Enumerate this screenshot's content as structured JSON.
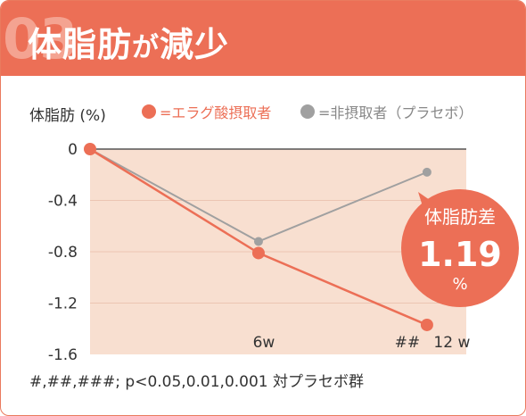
{
  "header": {
    "number": "03",
    "title_main": "体脂肪",
    "title_particle": "が",
    "title_end": "減少"
  },
  "chart_data": {
    "type": "line",
    "ylabel": "体脂肪 (%)",
    "yticks": [
      "0",
      "-0.4",
      "-0.8",
      "-1.2",
      "-1.6"
    ],
    "ylim": [
      -1.6,
      0
    ],
    "x": [
      0,
      6,
      12
    ],
    "xticklabels": [
      "6w",
      "12 w"
    ],
    "series": [
      {
        "name": "=エラグ酸摂取者",
        "color": "#ec6f56",
        "values": [
          0,
          -0.81,
          -1.37
        ]
      },
      {
        "name": "=非摂取者（プラセボ）",
        "color": "#a0a0a0",
        "values": [
          0,
          -0.72,
          -0.18
        ]
      }
    ],
    "significance_marker": "##",
    "annotation": {
      "label": "体脂肪差",
      "value": "1.19",
      "unit": "%"
    }
  },
  "footnote": "#,##,###; p<0.05,0.01,0.001 対プラセボ群",
  "colors": {
    "accent": "#ec6f56",
    "placebo": "#a0a0a0",
    "plot_bg": "#f8dfd0"
  }
}
